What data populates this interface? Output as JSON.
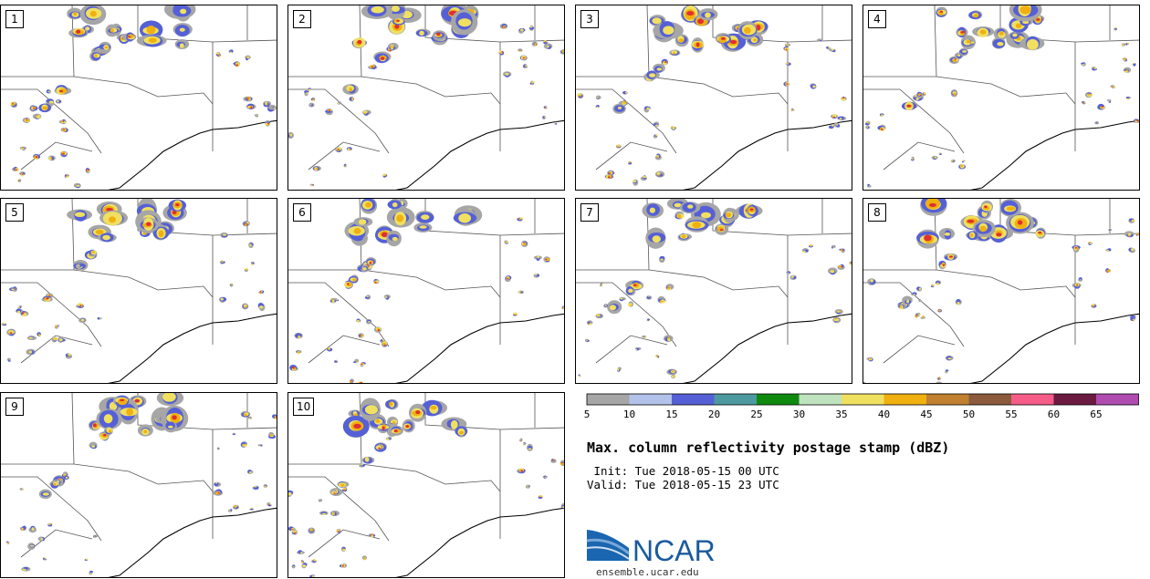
{
  "panels": [
    {
      "label": "1"
    },
    {
      "label": "2"
    },
    {
      "label": "3"
    },
    {
      "label": "4"
    },
    {
      "label": "5"
    },
    {
      "label": "6"
    },
    {
      "label": "7"
    },
    {
      "label": "8"
    },
    {
      "label": "9"
    },
    {
      "label": "10"
    }
  ],
  "legend": {
    "bins": [
      {
        "color": "#a6a6a6"
      },
      {
        "color": "#b3c2ea"
      },
      {
        "color": "#5560d6"
      },
      {
        "color": "#4c9aa0"
      },
      {
        "color": "#0f8a0f"
      },
      {
        "color": "#bfe2bf"
      },
      {
        "color": "#f0e060"
      },
      {
        "color": "#f0b010"
      },
      {
        "color": "#c08030"
      },
      {
        "color": "#8c5a3c"
      },
      {
        "color": "#f55c88"
      },
      {
        "color": "#6b1a40"
      },
      {
        "color": "#b04cb0"
      }
    ],
    "ticks": [
      "5",
      "10",
      "15",
      "20",
      "25",
      "30",
      "35",
      "40",
      "45",
      "50",
      "55",
      "60",
      "65"
    ]
  },
  "title": "Max. column reflectivity postage stamp (dBZ)",
  "init_line": " Init: Tue 2018-05-15 00 UTC",
  "valid_line": "Valid: Tue 2018-05-15 23 UTC",
  "logo": {
    "text": "NCAR",
    "url": "ensemble.ucar.edu",
    "color": "#1a66b0"
  },
  "storm_colors": [
    "#a6a6a6",
    "#5560d6",
    "#f0e060",
    "#f0b010",
    "#e03030",
    "#0f8a0f"
  ]
}
